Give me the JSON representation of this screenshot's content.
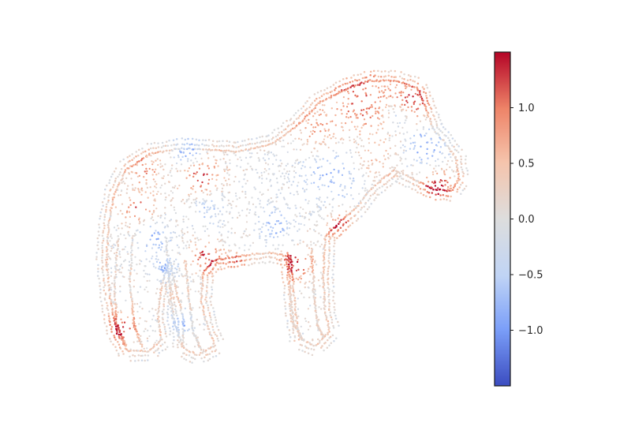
{
  "chart_data": {
    "type": "scatter",
    "title": "",
    "xlabel": "",
    "ylabel": "",
    "axes_visible": false,
    "grid": false,
    "subject": "horse-shaped contour point cloud",
    "colormap": "coolwarm",
    "colormap_colors": [
      "#3b4cc0",
      "#7b9ff9",
      "#c0d4f5",
      "#dddddd",
      "#f5c4ac",
      "#ee8468",
      "#b40426"
    ],
    "colorbar": {
      "placement": "right",
      "range": [
        -1.5,
        1.5
      ],
      "ticks": [
        1.0,
        0.5,
        0.0,
        -0.5,
        -1.0
      ],
      "tick_labels": [
        "1.0",
        "0.5",
        "0.0",
        "−0.5",
        "−1.0"
      ]
    }
  }
}
